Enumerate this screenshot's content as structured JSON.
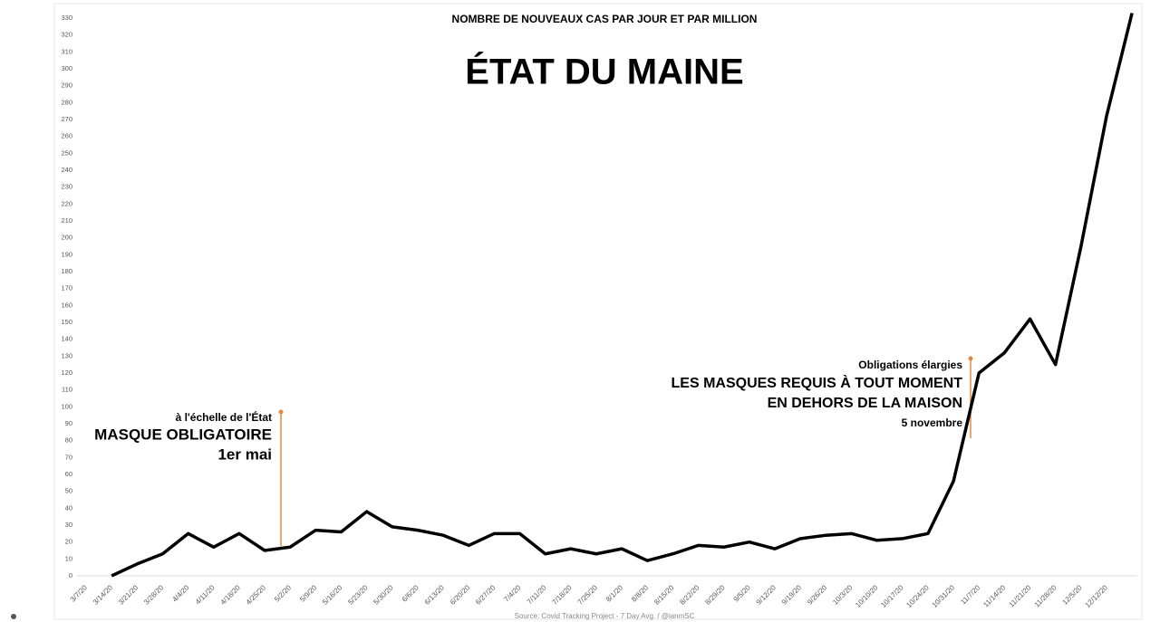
{
  "chart_data": {
    "type": "line",
    "subtitle": "NOMBRE DE NOUVEAUX CAS PAR JOUR ET PAR MILLION",
    "title": "ÉTAT DU MAINE",
    "source": "Source: Covid Tracking Project - 7 Day Avg. / @ianmSC",
    "annotations": [
      {
        "lines": [
          "à l'échelle de l'État",
          "MASQUE OBLIGATOIRE",
          "1er mai"
        ]
      },
      {
        "lines": [
          "Obligations élargies",
          "LES MASQUES REQUIS À TOUT MOMENT",
          "EN DEHORS DE LA MAISON",
          "5 novembre"
        ]
      }
    ],
    "categories": [
      "3/7/20",
      "3/14/20",
      "3/21/20",
      "3/28/20",
      "4/4/20",
      "4/11/20",
      "4/18/20",
      "4/25/20",
      "5/2/20",
      "5/9/20",
      "5/16/20",
      "5/23/20",
      "5/30/20",
      "6/6/20",
      "6/13/20",
      "6/20/20",
      "6/27/20",
      "7/4/20",
      "7/11/20",
      "7/18/20",
      "7/25/20",
      "8/1/20",
      "8/8/20",
      "8/15/20",
      "8/22/20",
      "8/29/20",
      "9/5/20",
      "9/12/20",
      "9/19/20",
      "9/26/20",
      "10/3/20",
      "10/10/20",
      "10/17/20",
      "10/24/20",
      "10/31/20",
      "11/7/20",
      "11/14/20",
      "11/21/20",
      "11/28/20",
      "12/5/20",
      "12/12/20",
      null
    ],
    "series": [
      {
        "name": "7 Day Avg.",
        "color": "#000000",
        "values": [
          null,
          0,
          7,
          13,
          25,
          17,
          25,
          15,
          17,
          27,
          26,
          38,
          29,
          27,
          24,
          18,
          25,
          25,
          13,
          16,
          13,
          16,
          9,
          13,
          18,
          17,
          20,
          16,
          22,
          24,
          25,
          21,
          22,
          25,
          56,
          120,
          132,
          152,
          125,
          195,
          272,
          333
        ]
      }
    ],
    "ylim": [
      0,
      330
    ],
    "yticks": [
      0,
      10,
      20,
      30,
      40,
      50,
      60,
      70,
      80,
      90,
      100,
      110,
      120,
      130,
      140,
      150,
      160,
      170,
      180,
      190,
      200,
      210,
      220,
      230,
      240,
      250,
      260,
      270,
      280,
      290,
      300,
      310,
      320,
      330
    ],
    "grid": false
  }
}
